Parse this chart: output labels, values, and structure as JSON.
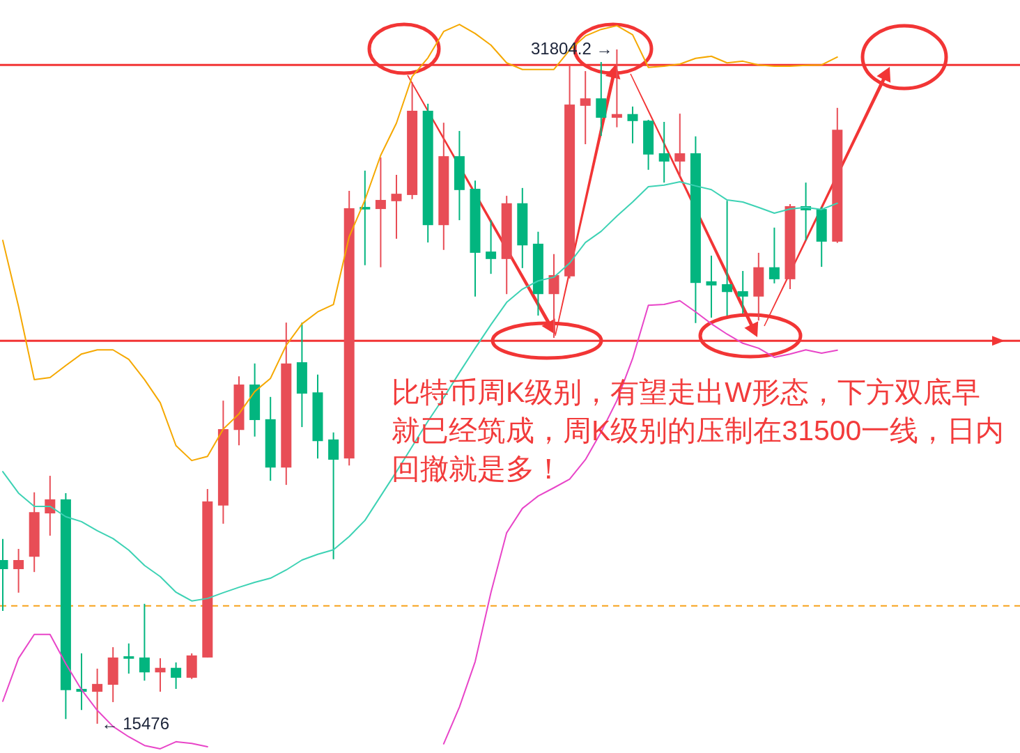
{
  "chart_data": {
    "type": "candlestick",
    "categories": [
      null,
      null,
      null,
      null,
      null,
      null,
      null,
      null,
      null,
      null,
      null,
      null,
      null,
      null,
      null,
      null,
      null,
      null,
      null,
      null,
      null,
      null,
      null,
      null,
      null,
      null,
      null,
      null,
      null,
      null,
      null,
      null,
      null,
      null,
      null,
      null,
      null,
      null,
      null,
      null,
      null,
      null,
      null,
      null,
      null,
      null,
      null,
      null,
      null,
      null,
      null,
      null,
      null,
      null
    ],
    "ohlc": [
      [
        19440,
        19950,
        18210,
        19220
      ],
      [
        19220,
        19710,
        18650,
        19440
      ],
      [
        19520,
        21080,
        19150,
        20600
      ],
      [
        20570,
        21480,
        20030,
        20910
      ],
      [
        20910,
        21060,
        15590,
        16290
      ],
      [
        16320,
        17180,
        15810,
        16250
      ],
      [
        16250,
        16810,
        15476,
        16440
      ],
      [
        16420,
        17330,
        16000,
        17080
      ],
      [
        17110,
        17420,
        16690,
        17050
      ],
      [
        17080,
        18380,
        16520,
        16720
      ],
      [
        16720,
        17060,
        16250,
        16830
      ],
      [
        16830,
        16960,
        16320,
        16590
      ],
      [
        16590,
        17180,
        16560,
        17130
      ],
      [
        17080,
        21160,
        17080,
        20860
      ],
      [
        20760,
        23300,
        20320,
        22610
      ],
      [
        22590,
        23890,
        22220,
        23690
      ],
      [
        23690,
        24200,
        22430,
        22830
      ],
      [
        22850,
        23390,
        21360,
        21680
      ],
      [
        21680,
        25190,
        21260,
        24200
      ],
      [
        24230,
        25190,
        22660,
        23470
      ],
      [
        23500,
        23930,
        21900,
        22320
      ],
      [
        22360,
        22530,
        19460,
        21870
      ],
      [
        21900,
        28380,
        21730,
        27960
      ],
      [
        27990,
        28870,
        26580,
        27930
      ],
      [
        27940,
        29190,
        26530,
        28160
      ],
      [
        28130,
        28770,
        27220,
        28310
      ],
      [
        28280,
        31010,
        28180,
        30320
      ],
      [
        30320,
        30490,
        27130,
        27550
      ],
      [
        27550,
        30030,
        26950,
        29220
      ],
      [
        29220,
        29830,
        27670,
        28400
      ],
      [
        28430,
        28630,
        25820,
        26880
      ],
      [
        26910,
        27670,
        26370,
        26730
      ],
      [
        26730,
        28260,
        25880,
        28080
      ],
      [
        28080,
        28450,
        26510,
        27060
      ],
      [
        27100,
        27390,
        25360,
        25880
      ],
      [
        25880,
        26850,
        24820,
        26340
      ],
      [
        26310,
        31400,
        26260,
        30470
      ],
      [
        30440,
        31280,
        29510,
        30620
      ],
      [
        30620,
        31500,
        29710,
        30150
      ],
      [
        30150,
        31804.2,
        29920,
        30240
      ],
      [
        30240,
        30420,
        29530,
        30070
      ],
      [
        30080,
        30100,
        28890,
        29260
      ],
      [
        29290,
        30050,
        28580,
        29090
      ],
      [
        29090,
        30250,
        28720,
        29290
      ],
      [
        29290,
        29700,
        25180,
        26150
      ],
      [
        26190,
        26810,
        25310,
        26090
      ],
      [
        26120,
        28140,
        25360,
        25930
      ],
      [
        25950,
        26440,
        25410,
        25820
      ],
      [
        25820,
        26880,
        25240,
        26530
      ],
      [
        26530,
        27490,
        26140,
        26240
      ],
      [
        26240,
        28060,
        26000,
        28010
      ],
      [
        28010,
        28580,
        27180,
        27910
      ],
      [
        27940,
        27990,
        26540,
        27150
      ],
      [
        27150,
        30390,
        27120,
        29860
      ]
    ],
    "series": [
      {
        "type": "line",
        "color": "#f5a800",
        "values": [
          27180,
          25580,
          23810,
          23860,
          24150,
          24430,
          24530,
          24530,
          24300,
          23810,
          23250,
          22210,
          21850,
          21950,
          22610,
          22980,
          23520,
          23840,
          24640,
          25160,
          25450,
          25630,
          27270,
          28160,
          29240,
          30020,
          31150,
          31600,
          32240,
          32410,
          32190,
          31910,
          31480,
          31320,
          31320,
          31320,
          31790,
          32130,
          32290,
          32380,
          32160,
          31370,
          31400,
          31450,
          31590,
          31640,
          31480,
          31520,
          31430,
          31400,
          31400,
          31420,
          31430,
          31620
        ]
      },
      {
        "type": "line",
        "color": "#3dd2b4",
        "values": [
          21580,
          21060,
          20740,
          20740,
          20490,
          20370,
          20150,
          19960,
          19680,
          19310,
          19040,
          18660,
          18450,
          18510,
          18650,
          18780,
          18900,
          19000,
          19200,
          19440,
          19580,
          19690,
          20010,
          20400,
          20990,
          21580,
          22190,
          22800,
          23370,
          23980,
          24570,
          25140,
          25680,
          26000,
          26200,
          26290,
          26630,
          27130,
          27400,
          27770,
          28110,
          28480,
          28520,
          28600,
          28500,
          28410,
          28160,
          28110,
          27980,
          27840,
          27940,
          27980,
          27930,
          28080
        ]
      },
      {
        "type": "line",
        "color": "#e845c8",
        "values": [
          16020,
          17060,
          17640,
          17640,
          16930,
          16300,
          15800,
          15410,
          15160,
          14950,
          14870,
          15040,
          15000,
          14920,
          null,
          null,
          null,
          null,
          null,
          null,
          null,
          null,
          null,
          null,
          null,
          null,
          null,
          null,
          14990,
          15880,
          16980,
          18650,
          20100,
          20690,
          20990,
          21190,
          21400,
          21870,
          22540,
          23300,
          24320,
          25610,
          25630,
          25720,
          25450,
          25160,
          24910,
          24690,
          24570,
          24350,
          24430,
          24530,
          24450,
          24520
        ]
      }
    ],
    "ref_lines": [
      {
        "axis": "y",
        "value": 18330,
        "color": "#f7a21b",
        "line_style": "dashed"
      },
      {
        "axis": "y",
        "value": 31430,
        "color": "#f23535",
        "line_style": "solid"
      },
      {
        "axis": "y",
        "value": 24750,
        "color": "#f23535",
        "line_style": "solid"
      }
    ],
    "annotations": [
      {
        "text": "31804.2 →",
        "y": 31804.2
      },
      "← 15476",
      "比特币周K级别，有望走出W形态，下方双底早就已经筑成，周K级别的压制在31500一线，日内回撤就是多！"
    ]
  }
}
